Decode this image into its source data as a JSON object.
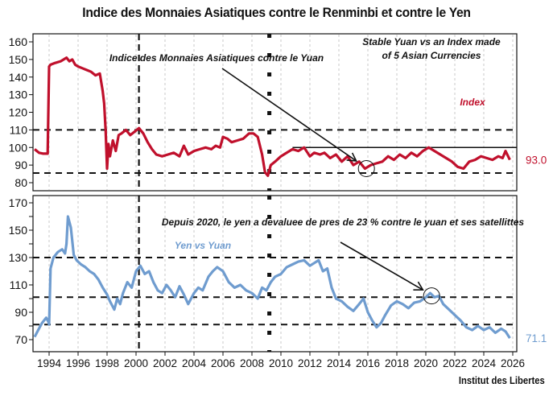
{
  "title": "Indice des Monnaies Asiatiques contre le Renminbi et contre le Yen",
  "source": "Institut des Libertes",
  "chart_data": [
    {
      "type": "line",
      "panel": "top",
      "title": "Indice des Monnaies Asiatiques contre le Yuan",
      "series": [
        {
          "name": "Index",
          "color": "#c0102c",
          "last_value_label": "93.0",
          "x": [
            1993.0,
            1993.3,
            1993.6,
            1993.9,
            1994.0,
            1994.1,
            1994.4,
            1994.8,
            1995.2,
            1995.4,
            1995.6,
            1995.8,
            1996.0,
            1996.3,
            1996.6,
            1996.9,
            1997.2,
            1997.5,
            1997.7,
            1997.8,
            1997.9,
            1998.0,
            1998.1,
            1998.2,
            1998.4,
            1998.6,
            1998.8,
            1999.0,
            1999.3,
            1999.6,
            1999.9,
            2000.2,
            2000.5,
            2000.8,
            2001.1,
            2001.4,
            2001.8,
            2002.2,
            2002.6,
            2003.0,
            2003.3,
            2003.6,
            2004.0,
            2004.4,
            2004.8,
            2005.2,
            2005.5,
            2005.8,
            2006.0,
            2006.3,
            2006.6,
            2007.0,
            2007.4,
            2007.8,
            2008.1,
            2008.4,
            2008.7,
            2008.9,
            2009.1,
            2009.3,
            2009.6,
            2010.0,
            2010.4,
            2010.8,
            2011.2,
            2011.6,
            2012.0,
            2012.3,
            2012.7,
            2013.0,
            2013.4,
            2013.8,
            2014.2,
            2014.6,
            2015.0,
            2015.4,
            2015.8,
            2016.2,
            2016.6,
            2017.0,
            2017.4,
            2017.8,
            2018.2,
            2018.6,
            2019.0,
            2019.4,
            2019.8,
            2020.2,
            2020.6,
            2021.0,
            2021.4,
            2021.8,
            2022.2,
            2022.6,
            2023.0,
            2023.4,
            2023.8,
            2024.2,
            2024.6,
            2025.0,
            2025.3,
            2025.5,
            2025.8
          ],
          "y": [
            99,
            97,
            96.5,
            96.5,
            146,
            147,
            148,
            149,
            151,
            149,
            150,
            147,
            146,
            145,
            144,
            143,
            141,
            142,
            132,
            125,
            110,
            88,
            102,
            95,
            104,
            98,
            107,
            108,
            110,
            107,
            109,
            111,
            108,
            103,
            99,
            96,
            95,
            96,
            97,
            95,
            101,
            96,
            98,
            99,
            100,
            99,
            101,
            100,
            106,
            105,
            103,
            104,
            105,
            108,
            108,
            106,
            96,
            86,
            84,
            90,
            92,
            95,
            97,
            99,
            98,
            100,
            95,
            97,
            96,
            97,
            94,
            96,
            92,
            95,
            90,
            92,
            88,
            90,
            91,
            92,
            95,
            93,
            96,
            94,
            97,
            95,
            98,
            100,
            98,
            96,
            94,
            92,
            89,
            88,
            92,
            93,
            95,
            94,
            93,
            95,
            94,
            98,
            93.0
          ]
        }
      ],
      "reference_lines": [
        {
          "type": "horizontal-dashed",
          "y": 110
        },
        {
          "type": "horizontal-dashed",
          "y": 85.5
        },
        {
          "type": "horizontal-solid",
          "y": 100,
          "from_x": 2010.8,
          "to_x": 2026.2
        }
      ],
      "annotations": [
        {
          "text": "Indice des Monnaies Asiatiques contre le Yuan",
          "arrow_to": [
            2015.2,
            91
          ]
        },
        {
          "text": "Stable Yuan vs an Index made",
          "line": 1
        },
        {
          "text": "of 5 Asian Currencies",
          "line": 2
        },
        {
          "text": "Index",
          "color": "#c0102c"
        }
      ],
      "circle_highlight": [
        2015.9,
        88
      ],
      "ylim": [
        75,
        163
      ],
      "yticks": [
        80,
        90,
        100,
        110,
        120,
        130,
        140,
        150,
        160
      ],
      "grid": "vertical dashed light gray"
    },
    {
      "type": "line",
      "panel": "bottom",
      "title": "Depuis 2020, le yen a devaluee de pres de 23 % contre le yuan et ses satellittes",
      "series": [
        {
          "name": "Yen vs Yuan",
          "color": "#6f9ccf",
          "last_value_label": "71.1",
          "x": [
            1993.0,
            1993.2,
            1993.5,
            1993.8,
            1993.95,
            1994.0,
            1994.1,
            1994.3,
            1994.6,
            1994.9,
            1995.1,
            1995.2,
            1995.3,
            1995.5,
            1995.7,
            1995.9,
            1996.2,
            1996.5,
            1996.8,
            1997.1,
            1997.4,
            1997.7,
            1998.0,
            1998.2,
            1998.5,
            1998.7,
            1998.9,
            1999.1,
            1999.4,
            1999.7,
            2000.0,
            2000.3,
            2000.6,
            2000.9,
            2001.2,
            2001.5,
            2001.8,
            2002.1,
            2002.4,
            2002.7,
            2003.0,
            2003.3,
            2003.6,
            2004.0,
            2004.3,
            2004.6,
            2005.0,
            2005.3,
            2005.6,
            2006.0,
            2006.4,
            2006.8,
            2007.2,
            2007.6,
            2008.0,
            2008.4,
            2008.7,
            2009.0,
            2009.3,
            2009.6,
            2010.0,
            2010.4,
            2010.8,
            2011.2,
            2011.6,
            2012.0,
            2012.3,
            2012.6,
            2012.9,
            2013.2,
            2013.5,
            2013.8,
            2014.2,
            2014.6,
            2015.0,
            2015.4,
            2015.7,
            2016.0,
            2016.3,
            2016.6,
            2016.9,
            2017.2,
            2017.6,
            2018.0,
            2018.4,
            2018.8,
            2019.2,
            2019.6,
            2020.0,
            2020.3,
            2020.6,
            2020.9,
            2021.2,
            2021.6,
            2022.0,
            2022.4,
            2022.8,
            2023.2,
            2023.6,
            2024.0,
            2024.4,
            2024.8,
            2025.2,
            2025.5,
            2025.8
          ],
          "y": [
            72,
            76,
            82,
            86,
            83,
            81,
            122,
            130,
            134,
            136,
            133,
            140,
            160,
            152,
            132,
            128,
            125,
            123,
            120,
            118,
            114,
            108,
            103,
            98,
            92,
            100,
            96,
            104,
            112,
            108,
            120,
            124,
            118,
            120,
            112,
            106,
            104,
            110,
            106,
            101,
            109,
            103,
            96,
            104,
            108,
            106,
            116,
            120,
            123,
            120,
            112,
            108,
            110,
            106,
            104,
            100,
            108,
            106,
            112,
            116,
            118,
            123,
            125,
            127,
            128,
            124,
            126,
            128,
            120,
            122,
            108,
            100,
            98,
            94,
            91,
            96,
            100,
            90,
            84,
            79,
            82,
            88,
            95,
            98,
            96,
            93,
            97,
            98,
            101,
            104,
            101,
            102,
            96,
            92,
            88,
            84,
            79,
            77,
            80,
            77,
            79,
            75,
            78,
            76,
            71.1
          ]
        }
      ],
      "reference_lines": [
        {
          "type": "horizontal-dashed",
          "y": 130
        },
        {
          "type": "horizontal-dashed",
          "y": 101
        },
        {
          "type": "horizontal-dashed",
          "y": 81
        }
      ],
      "annotations": [
        {
          "text": "Depuis 2020, le yen a devaluee de pres de 23 % contre le yuan et ses satellittes",
          "arrow_to": [
            2019.8,
            104
          ]
        },
        {
          "text": "Yen vs Yuan",
          "color": "#6f9ccf"
        }
      ],
      "circle_highlight": [
        2020.4,
        102
      ],
      "ylim": [
        65,
        173
      ],
      "yticks": [
        70,
        90,
        110,
        130,
        150,
        170
      ],
      "minor_yticks": [
        80,
        100,
        120,
        140,
        160
      ],
      "grid": "vertical dashed light gray"
    }
  ],
  "shared_x": {
    "xlim": [
      1993.0,
      2026.2
    ],
    "xticks": [
      "1994",
      "1996",
      "1998",
      "2000",
      "2002",
      "2004",
      "2006",
      "2008",
      "2010",
      "2012",
      "2014",
      "2016",
      "2018",
      "2020",
      "2022",
      "2024",
      "2026"
    ],
    "event_markers": [
      {
        "x": 2000.2,
        "style": "black long dash"
      },
      {
        "x": 2009.2,
        "style": "black square dots"
      }
    ]
  }
}
